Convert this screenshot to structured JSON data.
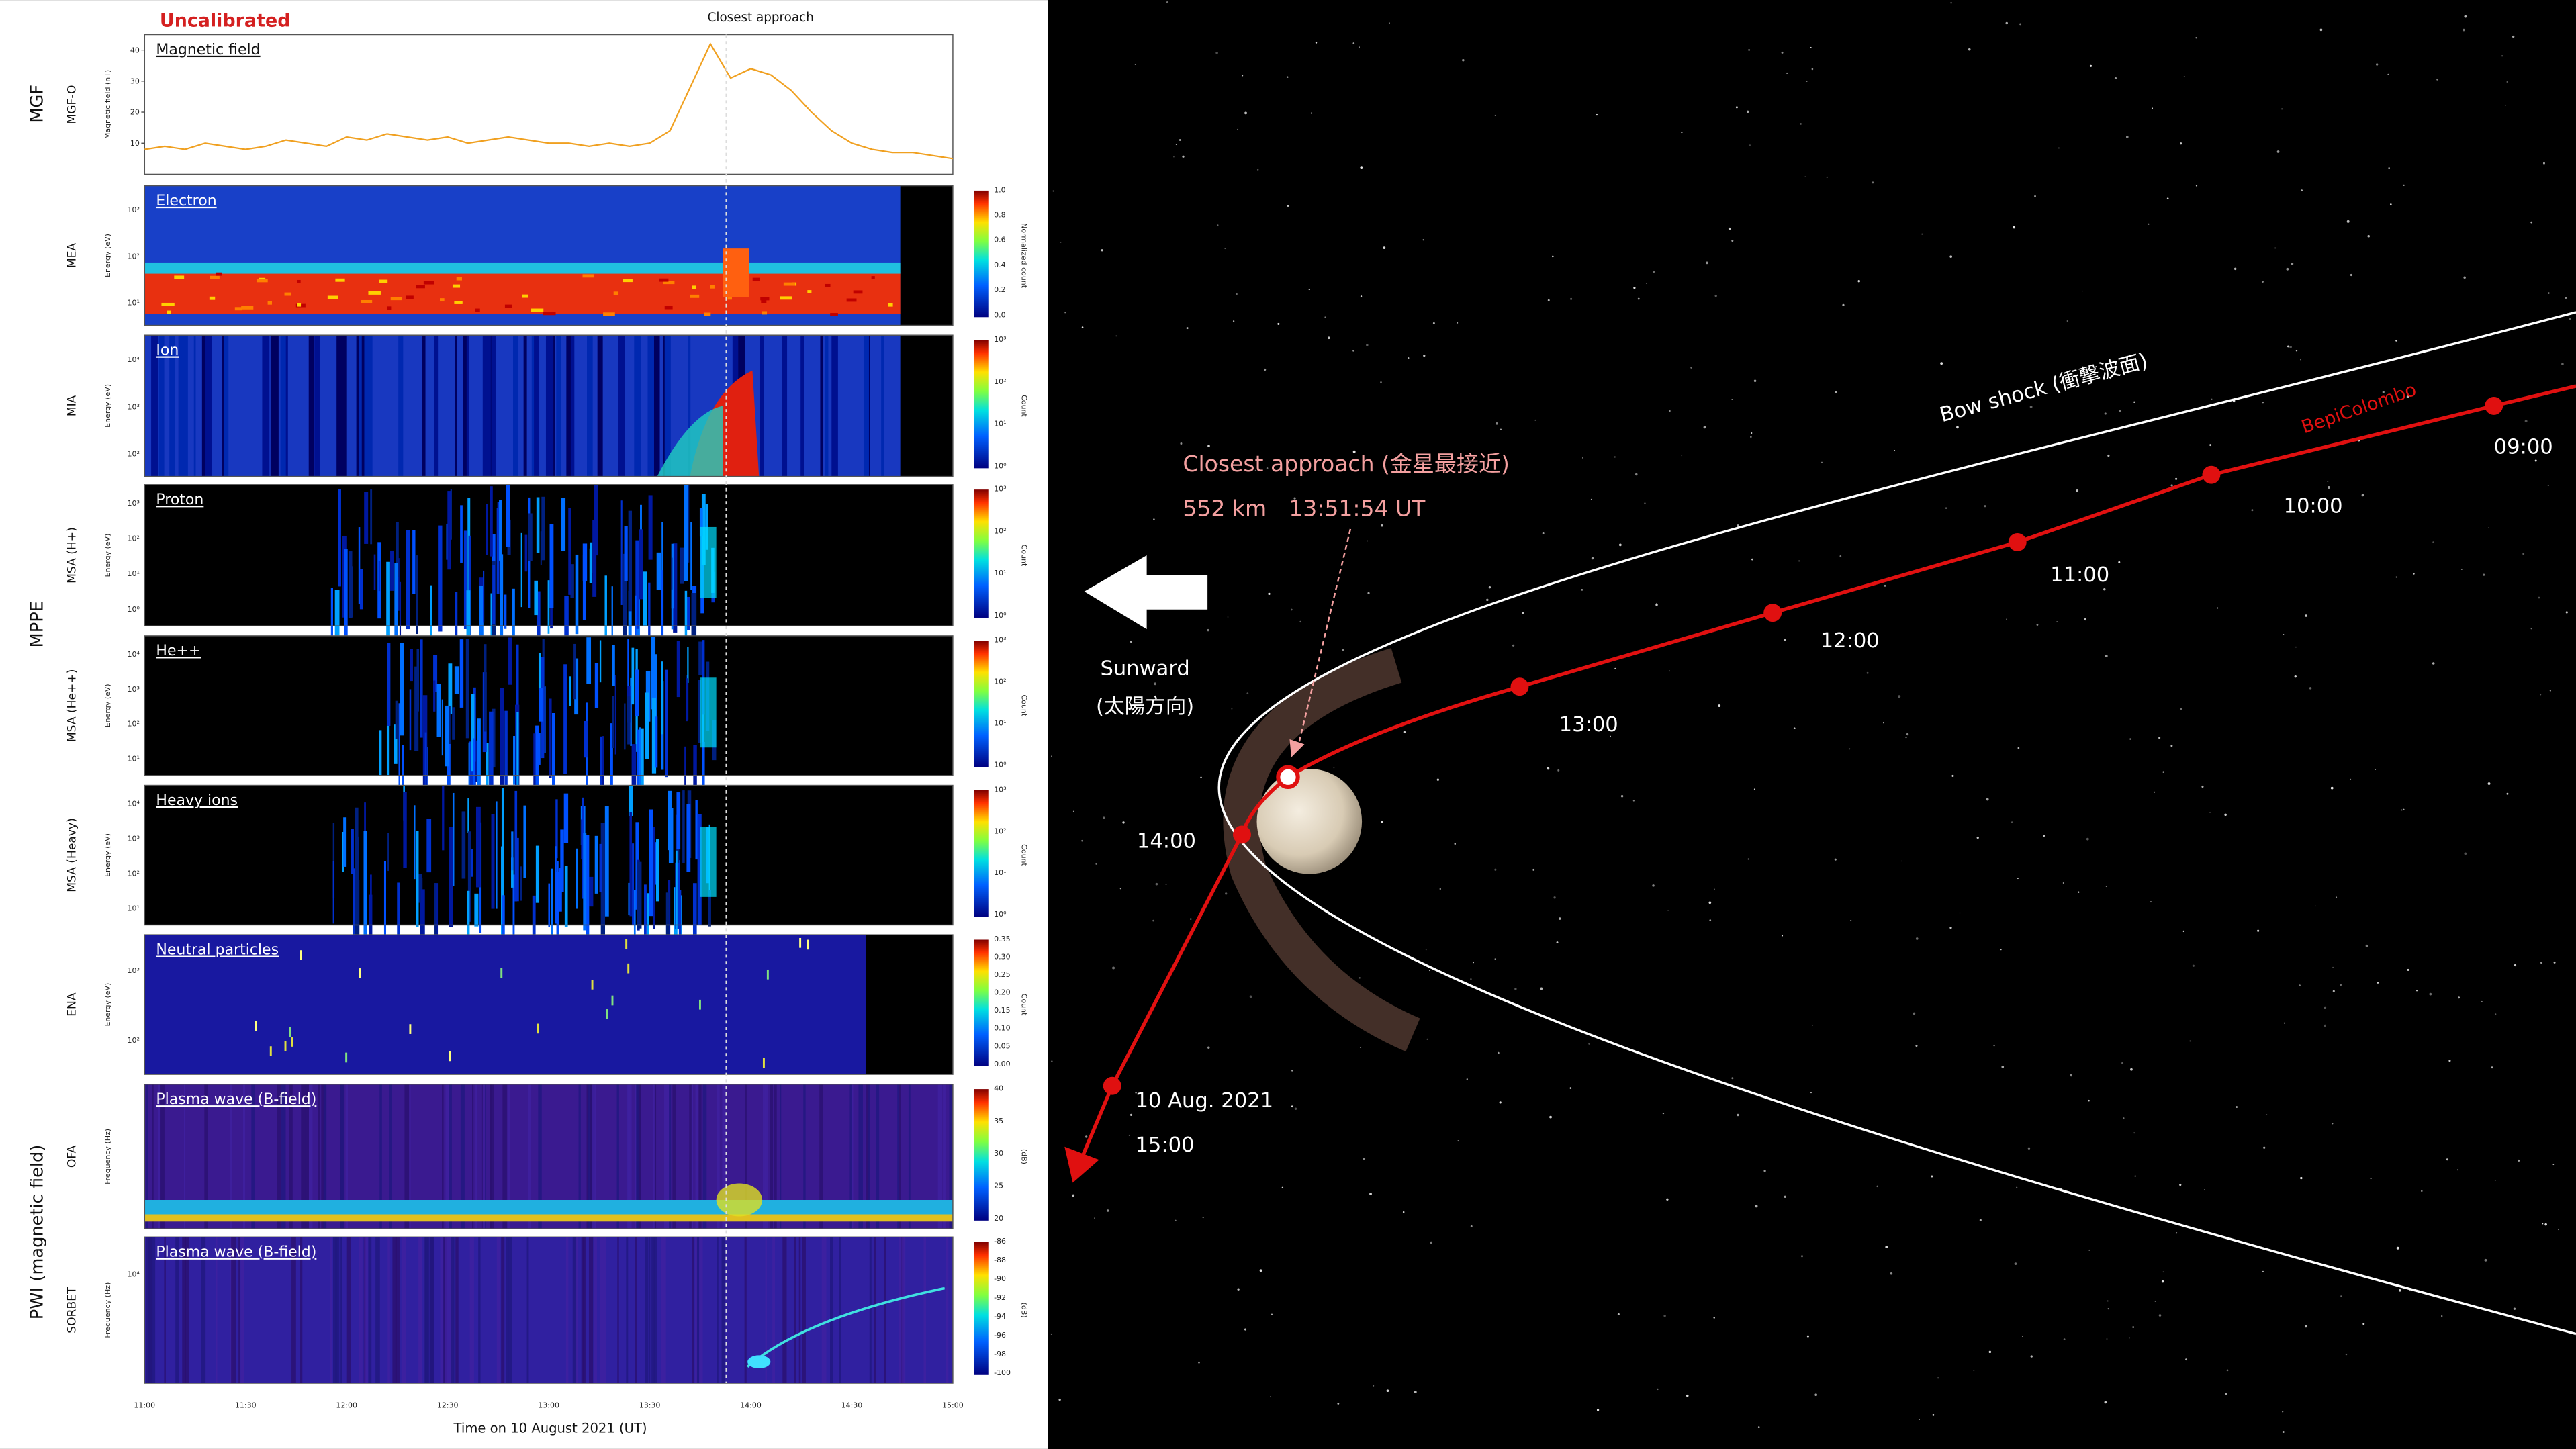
{
  "header": {
    "note": "Uncalibrated",
    "closest": "Closest approach"
  },
  "groups": [
    "MGF",
    "MPPE",
    "PWI (magnetic field)"
  ],
  "panels": [
    {
      "sub": "MGF-O",
      "title": "Magnetic field",
      "ylabel": "Magnetic field (nT)",
      "ylim": [
        0,
        45
      ],
      "yticks": [
        10,
        20,
        30,
        40
      ],
      "values": [
        8,
        9,
        8,
        10,
        9,
        8,
        9,
        11,
        10,
        9,
        12,
        11,
        13,
        12,
        11,
        12,
        10,
        11,
        12,
        11,
        10,
        10,
        9,
        10,
        9,
        10,
        14,
        28,
        42,
        31,
        34,
        32,
        27,
        20,
        14,
        10,
        8,
        7,
        7,
        6,
        5
      ],
      "color": "#f0a020"
    },
    {
      "sub": "MEA",
      "title": "Electron",
      "ylabel": "Energy (eV)",
      "yticks": [
        "10³",
        "10²",
        "10¹"
      ],
      "colorbar": {
        "label": "Normalized count",
        "ticks": [
          "1.0",
          "0.8",
          "0.6",
          "0.4",
          "0.2",
          "0.0"
        ]
      }
    },
    {
      "sub": "MIA",
      "title": "Ion",
      "ylabel": "Energy (eV)",
      "yticks": [
        "10⁴",
        "10³",
        "10²"
      ],
      "colorbar": {
        "label": "Count",
        "ticks": [
          "10³",
          "10²",
          "10¹",
          "10⁰"
        ]
      }
    },
    {
      "sub": "MSA (H+)",
      "title": "Proton",
      "ylabel": "Energy (eV)",
      "yticks": [
        "10³",
        "10²",
        "10¹",
        "10⁰"
      ],
      "colorbar": {
        "label": "Count",
        "ticks": [
          "10³",
          "10²",
          "10¹",
          "10⁰"
        ]
      }
    },
    {
      "sub": "MSA (He++)",
      "title": "He++",
      "ylabel": "Energy (eV)",
      "yticks": [
        "10⁴",
        "10³",
        "10²",
        "10¹"
      ],
      "colorbar": {
        "label": "Count",
        "ticks": [
          "10³",
          "10²",
          "10¹",
          "10⁰"
        ]
      }
    },
    {
      "sub": "MSA (Heavy)",
      "title": "Heavy ions",
      "ylabel": "Energy (eV)",
      "yticks": [
        "10⁴",
        "10³",
        "10²",
        "10¹"
      ],
      "colorbar": {
        "label": "Count",
        "ticks": [
          "10³",
          "10²",
          "10¹",
          "10⁰"
        ]
      }
    },
    {
      "sub": "ENA",
      "title": "Neutral particles",
      "ylabel": "Energy (eV)",
      "yticks": [
        "10³",
        "10²"
      ],
      "colorbar": {
        "label": "Count",
        "ticks": [
          "0.35",
          "0.30",
          "0.25",
          "0.20",
          "0.15",
          "0.10",
          "0.05",
          "0.00"
        ]
      }
    },
    {
      "sub": "OFA",
      "title": "Plasma wave (B-field)",
      "ylabel": "Frequency (Hz)",
      "yticks": [],
      "colorbar": {
        "label": "(dB)",
        "ticks": [
          "40",
          "35",
          "30",
          "25",
          "20"
        ]
      }
    },
    {
      "sub": "SORBET",
      "title": "Plasma wave (B-field)",
      "ylabel": "Frequency (Hz)",
      "yticks": [
        "10⁴"
      ],
      "colorbar": {
        "label": "(dB)",
        "ticks": [
          "-86",
          "-88",
          "-90",
          "-92",
          "-94",
          "-96",
          "-98",
          "-100"
        ]
      }
    }
  ],
  "time_axis": {
    "ticks": [
      "11:00",
      "11:30",
      "12:00",
      "12:30",
      "13:00",
      "13:30",
      "14:00",
      "14:30",
      "15:00"
    ],
    "label": "Time on 10 August 2021 (UT)"
  },
  "orbit": {
    "bow_shock": "Bow shock (衝撃波面)",
    "spacecraft": "BepiColombo",
    "closest_title": "Closest approach (金星最接近)",
    "closest_detail": "552 km　13:51:54 UT",
    "sunward": "Sunward",
    "sunward_jp": "(太陽方向)",
    "times": [
      "09:00",
      "10:00",
      "11:00",
      "12:00",
      "13:00",
      "14:00",
      "15:00"
    ],
    "date": "10 Aug. 2021"
  }
}
